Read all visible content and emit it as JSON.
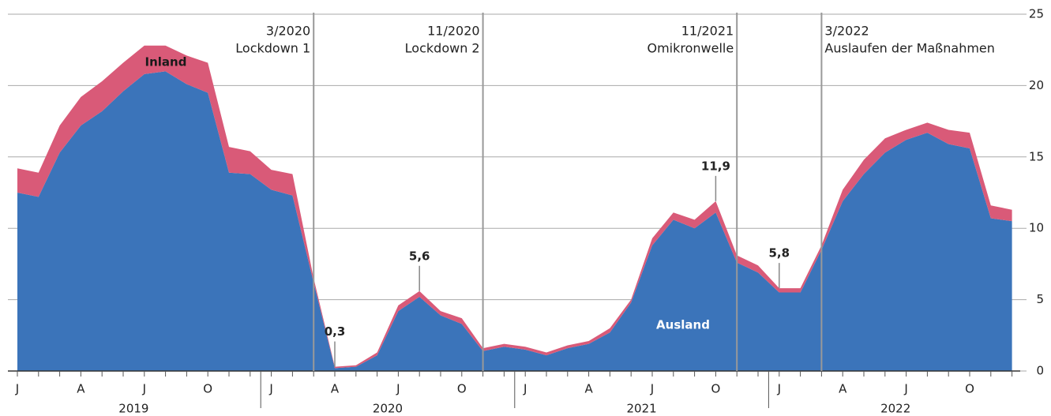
{
  "chart_data": {
    "type": "area",
    "stacked": true,
    "categories": [
      "J",
      null,
      null,
      "A",
      null,
      null,
      "J",
      null,
      null,
      "O",
      null,
      null,
      "J",
      null,
      null,
      "A",
      null,
      null,
      "J",
      null,
      null,
      "O",
      null,
      null,
      "J",
      null,
      null,
      "A",
      null,
      null,
      "J",
      null,
      null,
      "O",
      null,
      null,
      "J",
      null,
      null,
      "A",
      null,
      null,
      "J",
      null,
      null,
      "O",
      null,
      null
    ],
    "years": [
      "2019",
      "2020",
      "2021",
      "2022"
    ],
    "series": [
      {
        "name": "Ausland",
        "color": "#3b74ba",
        "values": [
          12.5,
          12.2,
          15.3,
          17.2,
          18.2,
          19.6,
          20.8,
          21.0,
          20.1,
          19.5,
          13.9,
          13.8,
          12.7,
          12.3,
          6.2,
          0.2,
          0.3,
          1.1,
          4.2,
          5.2,
          3.9,
          3.3,
          1.4,
          1.7,
          1.5,
          1.1,
          1.6,
          1.9,
          2.7,
          4.8,
          8.8,
          10.6,
          10.0,
          11.1,
          7.6,
          6.9,
          5.5,
          5.5,
          8.5,
          11.9,
          13.8,
          15.3,
          16.2,
          16.7,
          15.9,
          15.6,
          10.7,
          10.5
        ]
      },
      {
        "name": "Inland",
        "color": "#d95a78",
        "values": [
          1.7,
          1.7,
          1.9,
          2.0,
          2.1,
          2.0,
          2.0,
          1.8,
          2.0,
          2.1,
          1.8,
          1.6,
          1.4,
          1.5,
          0.3,
          0.1,
          0.1,
          0.2,
          0.4,
          0.4,
          0.3,
          0.4,
          0.2,
          0.2,
          0.2,
          0.2,
          0.2,
          0.2,
          0.3,
          0.2,
          0.5,
          0.5,
          0.6,
          0.8,
          0.5,
          0.5,
          0.3,
          0.3,
          0.3,
          0.8,
          1.0,
          1.0,
          0.7,
          0.7,
          1.0,
          1.1,
          0.9,
          0.8
        ]
      }
    ],
    "total_labels": [
      {
        "index": 15,
        "value": 0.3,
        "label": "0,3"
      },
      {
        "index": 19,
        "value": 5.6,
        "label": "5,6"
      },
      {
        "index": 33,
        "value": 11.9,
        "label": "11,9"
      },
      {
        "index": 36,
        "value": 5.8,
        "label": "5,8"
      }
    ],
    "events": [
      {
        "index": 14,
        "date": "3/2020",
        "label": "Lockdown 1"
      },
      {
        "index": 22,
        "date": "11/2020",
        "label": "Lockdown 2"
      },
      {
        "index": 34,
        "date": "11/2021",
        "label": "Omikronwelle"
      },
      {
        "index": 38,
        "date": "3/2022",
        "label": "Auslaufen der Maßnahmen"
      }
    ],
    "ylim": [
      0,
      25
    ],
    "yticks": [
      0,
      5,
      10,
      15,
      20,
      25
    ],
    "grid": true
  }
}
